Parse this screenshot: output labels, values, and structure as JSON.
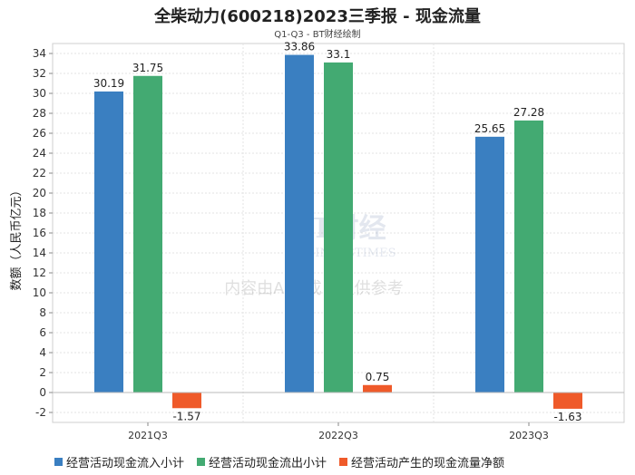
{
  "chart_data": {
    "type": "bar",
    "title": "全柴动力(600218)2023三季报 - 现金流量",
    "subtitle": "Q1-Q3 - BT财经绘制",
    "ylabel": "数额（人民币亿元）",
    "categories": [
      "2021Q3",
      "2022Q3",
      "2023Q3"
    ],
    "ylim": [
      -3,
      35
    ],
    "yticks": [
      -2,
      0,
      2,
      4,
      6,
      8,
      10,
      12,
      14,
      16,
      18,
      20,
      22,
      24,
      26,
      28,
      30,
      32,
      34
    ],
    "grid": true,
    "legend_position": "bottom",
    "series": [
      {
        "name": "经营活动现金流入小计",
        "color": "#3a7fc1",
        "values": [
          30.19,
          33.86,
          25.65
        ],
        "labels": [
          "30.19",
          "33.86",
          "25.65"
        ]
      },
      {
        "name": "经营活动现金流出小计",
        "color": "#43aa72",
        "values": [
          31.75,
          33.1,
          27.28
        ],
        "labels": [
          "31.75",
          "33.1",
          "27.28"
        ]
      },
      {
        "name": "经营活动产生的现金流量净额",
        "color": "#ef5a2a",
        "values": [
          -1.57,
          0.75,
          -1.63
        ],
        "labels": [
          "-1.57",
          "0.75",
          "-1.63"
        ]
      }
    ]
  },
  "watermark": {
    "logo_text": "BT财经",
    "logo_sub": "BUSINESSTIMES",
    "notice": "内容由AI生成，仅供参考"
  }
}
